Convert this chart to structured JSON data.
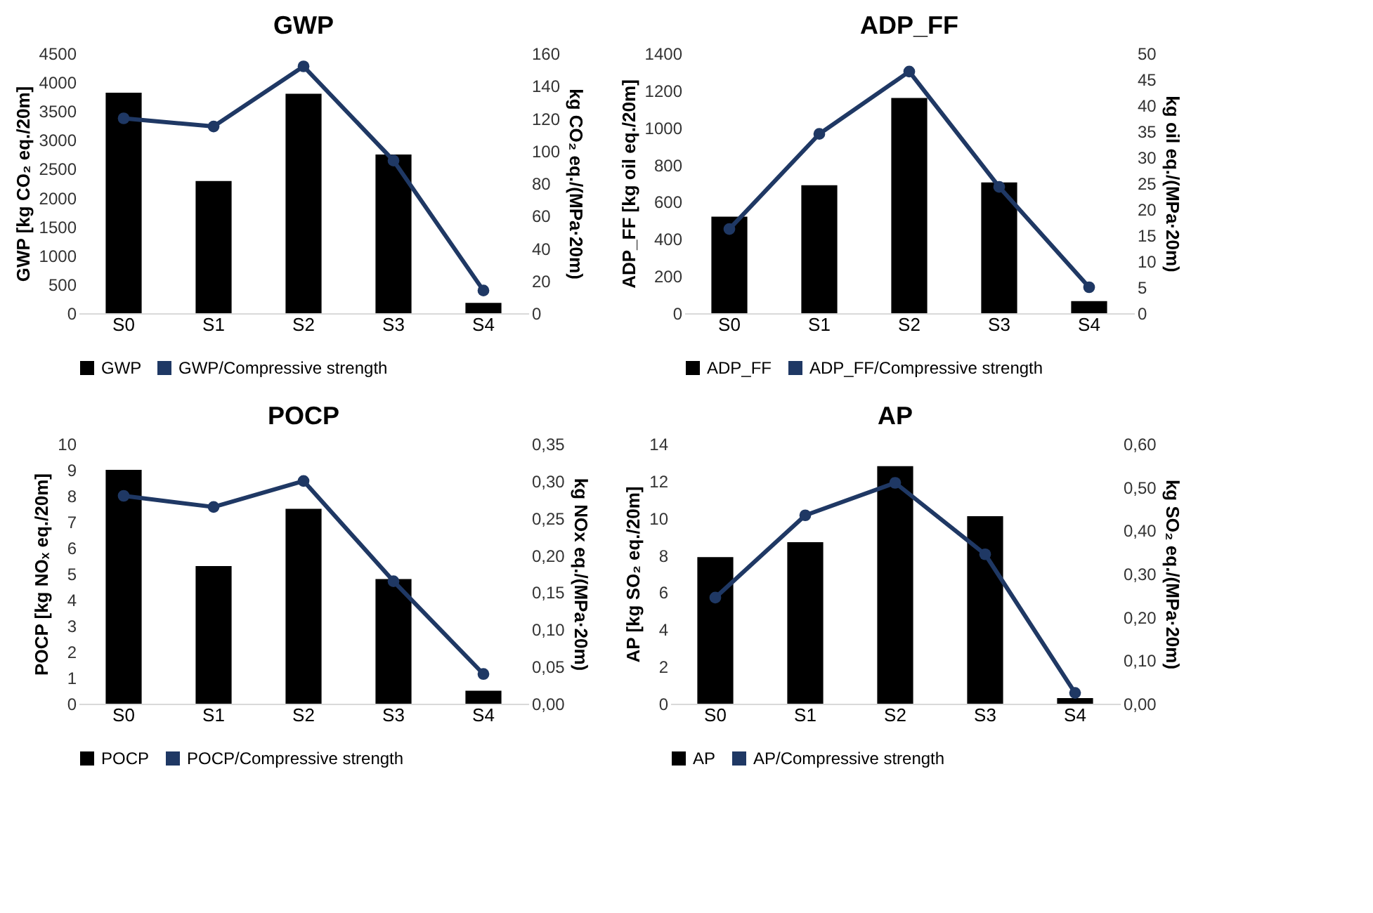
{
  "chart_data": [
    {
      "type": "bar",
      "title": "GWP",
      "categories": [
        "S0",
        "S1",
        "S2",
        "S3",
        "S4"
      ],
      "ylabel": "GWP [kg CO₂ eq./20m]",
      "y2label": "kg CO₂ eq./(MPa·20m)",
      "ylim": [
        0,
        4500
      ],
      "yticks": [
        0,
        500,
        1000,
        1500,
        2000,
        2500,
        3000,
        3500,
        4000,
        4500
      ],
      "y2lim": [
        0,
        160
      ],
      "y2ticks": [
        0,
        20,
        40,
        60,
        80,
        100,
        120,
        140,
        160
      ],
      "grid": false,
      "legend": "bottom",
      "marker": "circle",
      "line_style": "solid",
      "series": [
        {
          "name": "GWP",
          "color": "#000000",
          "values": [
            3820,
            2290,
            3800,
            2750,
            180
          ]
        },
        {
          "name": "GWP/Compressive strength",
          "type": "line",
          "axis": "y2",
          "color": "#1f3864",
          "values": [
            120,
            115,
            152,
            94,
            14
          ]
        }
      ]
    },
    {
      "type": "bar",
      "title": "ADP_FF",
      "categories": [
        "S0",
        "S1",
        "S2",
        "S3",
        "S4"
      ],
      "ylabel": "ADP_FF [kg oil eq./20m]",
      "y2label": "kg oil eq./(MPa·20m)",
      "ylim": [
        0,
        1400
      ],
      "yticks": [
        0,
        200,
        400,
        600,
        800,
        1000,
        1200,
        1400
      ],
      "y2lim": [
        0,
        50
      ],
      "y2ticks": [
        0,
        5,
        10,
        15,
        20,
        25,
        30,
        35,
        40,
        45,
        50
      ],
      "grid": false,
      "legend": "bottom",
      "marker": "circle",
      "line_style": "solid",
      "series": [
        {
          "name": "ADP_FF",
          "color": "#000000",
          "values": [
            520,
            690,
            1160,
            705,
            65
          ]
        },
        {
          "name": "ADP_FF/Compressive strength",
          "type": "line",
          "axis": "y2",
          "color": "#1f3864",
          "values": [
            16.2,
            34.5,
            46.5,
            24.3,
            5
          ]
        }
      ]
    },
    {
      "type": "bar",
      "title": "POCP",
      "categories": [
        "S0",
        "S1",
        "S2",
        "S3",
        "S4"
      ],
      "ylabel": "POCP [kg NOₓ eq./20m]",
      "y2label": "kg NOx eq./(MPa·20m)",
      "ylim": [
        0,
        10
      ],
      "yticks": [
        0,
        1,
        2,
        3,
        4,
        5,
        6,
        7,
        8,
        9,
        10
      ],
      "y2lim": [
        0,
        0.35
      ],
      "y2ticks": [
        {
          "value": 0,
          "label": "0,00"
        },
        {
          "value": 0.05,
          "label": "0,05"
        },
        {
          "value": 0.1,
          "label": "0,10"
        },
        {
          "value": 0.15,
          "label": "0,15"
        },
        {
          "value": 0.2,
          "label": "0,20"
        },
        {
          "value": 0.25,
          "label": "0,25"
        },
        {
          "value": 0.3,
          "label": "0,30"
        },
        {
          "value": 0.35,
          "label": "0,35"
        }
      ],
      "grid": false,
      "legend": "bottom",
      "marker": "circle",
      "line_style": "solid",
      "series": [
        {
          "name": "POCP",
          "color": "#000000",
          "values": [
            9.0,
            5.3,
            7.5,
            4.8,
            0.5
          ]
        },
        {
          "name": "POCP/Compressive strength",
          "type": "line",
          "axis": "y2",
          "color": "#1f3864",
          "values": [
            0.28,
            0.265,
            0.3,
            0.165,
            0.04
          ]
        }
      ]
    },
    {
      "type": "bar",
      "title": "AP",
      "categories": [
        "S0",
        "S1",
        "S2",
        "S3",
        "S4"
      ],
      "ylabel": "AP [kg SO₂ eq./20m]",
      "y2label": "kg SO₂ eq./(MPa·20m)",
      "ylim": [
        0,
        14
      ],
      "yticks": [
        0,
        2,
        4,
        6,
        8,
        10,
        12,
        14
      ],
      "y2lim": [
        0,
        0.6
      ],
      "y2ticks": [
        {
          "value": 0,
          "label": "0,00"
        },
        {
          "value": 0.1,
          "label": "0,10"
        },
        {
          "value": 0.2,
          "label": "0,20"
        },
        {
          "value": 0.3,
          "label": "0,30"
        },
        {
          "value": 0.4,
          "label": "0,40"
        },
        {
          "value": 0.5,
          "label": "0,50"
        },
        {
          "value": 0.6,
          "label": "0,60"
        }
      ],
      "grid": false,
      "legend": "bottom",
      "marker": "circle",
      "line_style": "solid",
      "series": [
        {
          "name": "AP",
          "color": "#000000",
          "values": [
            7.9,
            8.7,
            12.8,
            10.1,
            0.3
          ]
        },
        {
          "name": "AP/Compressive strength",
          "type": "line",
          "axis": "y2",
          "color": "#1f3864",
          "values": [
            0.245,
            0.435,
            0.51,
            0.345,
            0.025
          ]
        }
      ]
    }
  ]
}
